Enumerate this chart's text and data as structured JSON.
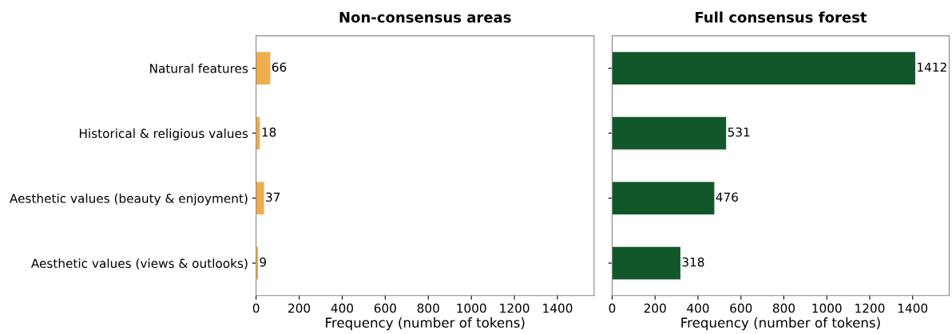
{
  "chart_data": [
    {
      "type": "bar",
      "orientation": "horizontal",
      "title": "Non-consensus areas",
      "xlabel": "Frequency (number of tokens)",
      "categories": [
        "Natural features",
        "Historical & religious values",
        "Aesthetic values (beauty & enjoyment)",
        "Aesthetic values (views & outlooks)"
      ],
      "values": [
        66,
        18,
        37,
        9
      ],
      "color": "#f0ad4e",
      "xlim": [
        0,
        1570
      ],
      "xticks": [
        0,
        200,
        400,
        600,
        800,
        1000,
        1200,
        1400
      ],
      "data_labels": true,
      "grid": false
    },
    {
      "type": "bar",
      "orientation": "horizontal",
      "title": "Full consensus forest",
      "xlabel": "Frequency (number of tokens)",
      "categories": [
        null,
        null,
        null,
        null
      ],
      "values": [
        1412,
        531,
        476,
        318
      ],
      "color": "#11572a",
      "xlim": [
        0,
        1570
      ],
      "xticks": [
        0,
        200,
        400,
        600,
        800,
        1000,
        1200,
        1400
      ],
      "data_labels": true,
      "grid": false,
      "tick_labels": "x"
    }
  ]
}
